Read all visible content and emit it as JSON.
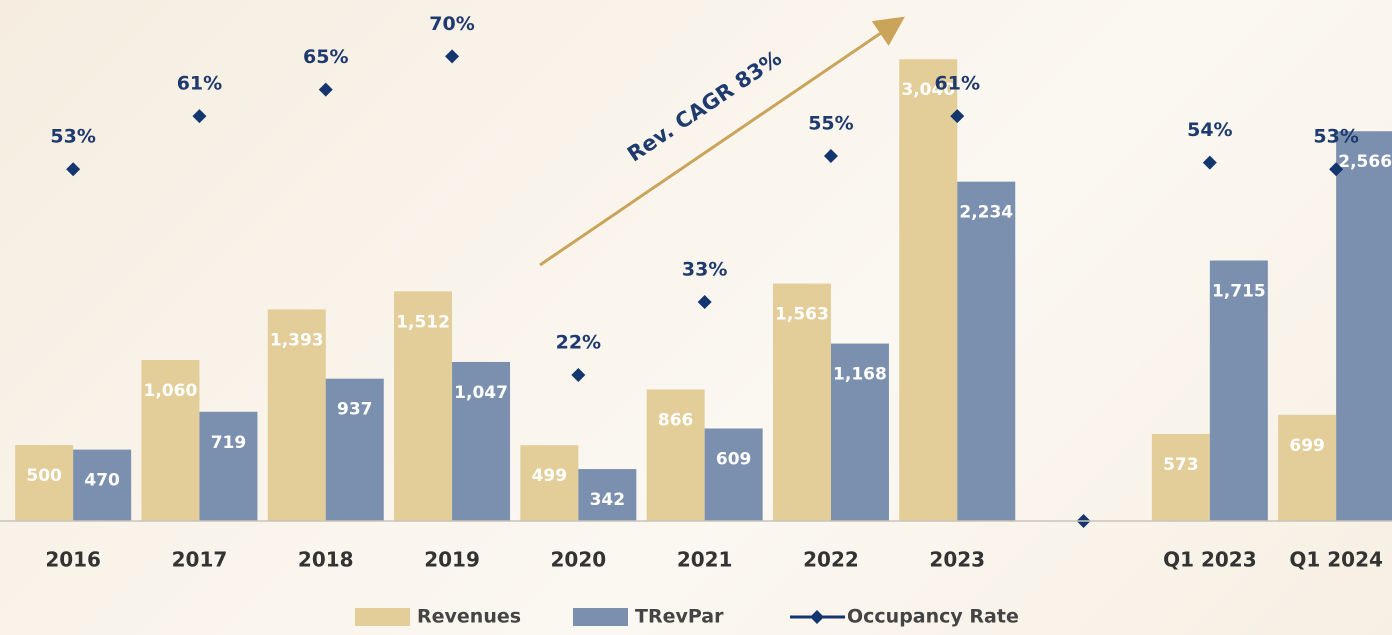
{
  "chart_data": {
    "type": "bar-line",
    "annotations": [
      "Rev. CAGR 83%"
    ],
    "categories": [
      "2016",
      "2017",
      "2018",
      "2019",
      "2020",
      "2021",
      "2022",
      "2023",
      null,
      "Q1 2023",
      "Q1 2024"
    ],
    "series": [
      {
        "name": "Revenues",
        "type": "bar",
        "color": "#e3cd98",
        "values": [
          500,
          1060,
          1393,
          1512,
          499,
          866,
          1563,
          3040,
          null,
          573,
          699
        ],
        "value_labels": [
          "500",
          "1,060",
          "1,393",
          "1,512",
          "499",
          "866",
          "1,563",
          "3,040",
          null,
          "573",
          "699"
        ]
      },
      {
        "name": "TRevPar",
        "type": "bar",
        "color": "#7b8fae",
        "values": [
          470,
          719,
          937,
          1047,
          342,
          609,
          1168,
          2234,
          null,
          1715,
          2566
        ],
        "value_labels": [
          "470",
          "719",
          "937",
          "1,047",
          "342",
          "609",
          "1,168",
          "2,234",
          null,
          "1,715",
          "2,566"
        ]
      },
      {
        "name": "Occupancy Rate",
        "type": "line",
        "axis": "y2",
        "color": "#14366e",
        "values": [
          53,
          61,
          65,
          70,
          22,
          33,
          55,
          61,
          0,
          54,
          53
        ],
        "value_labels": [
          "53%",
          "61%",
          "65%",
          "70%",
          "22%",
          "33%",
          "55%",
          "61%",
          null,
          "54%",
          "53%"
        ]
      }
    ],
    "ylim": [
      0,
      3430
    ],
    "y2lim": [
      0,
      78.5
    ],
    "legend": "bottom"
  }
}
